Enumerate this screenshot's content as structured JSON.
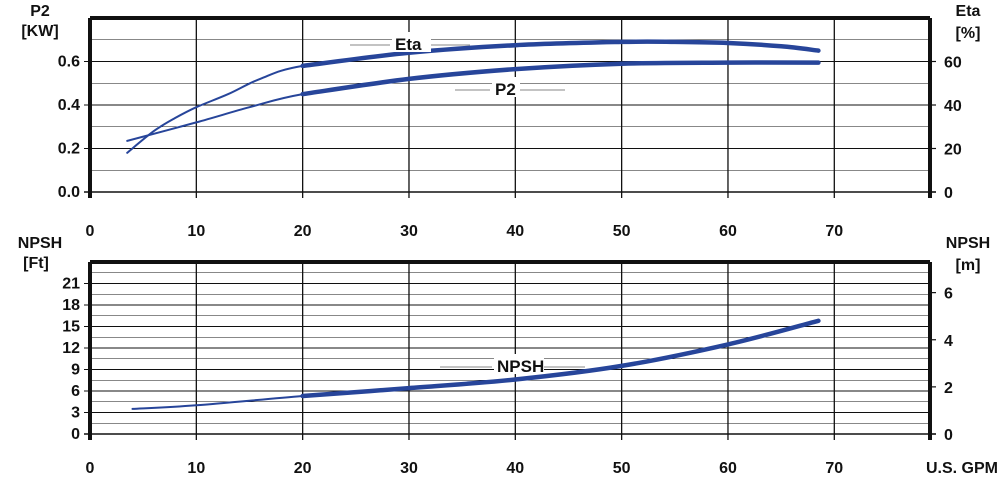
{
  "chart_data": [
    {
      "type": "line",
      "panel": "power-efficiency",
      "x_ticks": [
        "0",
        "10",
        "20",
        "30",
        "40",
        "50",
        "60",
        "70"
      ],
      "xlim": [
        0,
        79
      ],
      "left_axis": {
        "label_line1": "P2",
        "label_line2": "[KW]",
        "ticks": [
          "0.0",
          "0.2",
          "0.4",
          "0.6"
        ],
        "ylim": [
          0,
          0.8
        ]
      },
      "right_axis": {
        "label_line1": "Eta",
        "label_line2": "[%]",
        "ticks": [
          "0",
          "20",
          "40",
          "60"
        ],
        "ylim": [
          0,
          80
        ]
      },
      "series": [
        {
          "name": "Eta",
          "axis": "right",
          "color": "#27459a",
          "x": [
            3.5,
            6,
            8,
            10,
            13,
            16,
            20,
            30,
            40,
            50,
            55,
            60,
            65,
            68.5
          ],
          "y": [
            18,
            28,
            34,
            39,
            45,
            52,
            58,
            64,
            67.5,
            69,
            69,
            68.5,
            67,
            65
          ]
        },
        {
          "name": "P2",
          "axis": "left",
          "color": "#27459a",
          "x": [
            3.5,
            10,
            15,
            20,
            30,
            40,
            50,
            60,
            68.5
          ],
          "y": [
            0.235,
            0.32,
            0.39,
            0.45,
            0.52,
            0.565,
            0.59,
            0.595,
            0.595
          ]
        }
      ],
      "grid": true
    },
    {
      "type": "line",
      "panel": "npsh",
      "x_ticks": [
        "0",
        "10",
        "20",
        "30",
        "40",
        "50",
        "60",
        "70"
      ],
      "x_end_label": "U.S. GPM",
      "xlim": [
        0,
        79
      ],
      "left_axis": {
        "label_line1": "NPSH",
        "label_line2": "[Ft]",
        "ticks": [
          "0",
          "3",
          "6",
          "9",
          "12",
          "15",
          "18",
          "21"
        ],
        "ylim": [
          0,
          24
        ]
      },
      "right_axis": {
        "label_line1": "NPSH",
        "label_line2": "[m]",
        "ticks": [
          "0",
          "2",
          "4",
          "6"
        ],
        "ylim": [
          0,
          7.3
        ]
      },
      "series": [
        {
          "name": "NPSH",
          "axis": "left",
          "color": "#27459a",
          "x": [
            4,
            10,
            20,
            30,
            40,
            50,
            60,
            68.5
          ],
          "y": [
            3.5,
            4.0,
            5.3,
            6.4,
            7.6,
            9.5,
            12.5,
            15.8
          ]
        }
      ],
      "grid": true
    }
  ]
}
